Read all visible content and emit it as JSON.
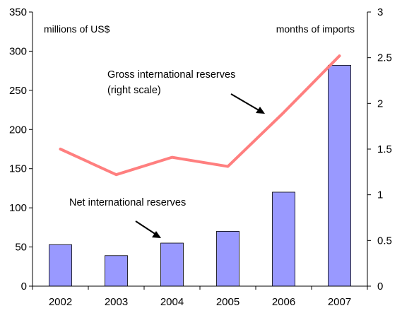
{
  "chart_data": {
    "type": "bar",
    "categories": [
      "2002",
      "2003",
      "2004",
      "2005",
      "2006",
      "2007"
    ],
    "left_axis": {
      "unit_label": "millions of US$",
      "ylim": [
        0,
        350
      ],
      "ticks": [
        "0",
        "50",
        "100",
        "150",
        "200",
        "250",
        "300",
        "350"
      ]
    },
    "right_axis": {
      "unit_label": "months of imports",
      "ylim": [
        0,
        3
      ],
      "ticks": [
        "0",
        "0.5",
        "1",
        "1.5",
        "2",
        "2.5",
        "3"
      ]
    },
    "series": [
      {
        "name": "Net international reserves",
        "type": "bar",
        "axis": "left",
        "color": "#9999ff",
        "values": [
          53,
          39,
          55,
          70,
          120,
          282
        ]
      },
      {
        "name": "Gross international reserves",
        "type": "line",
        "axis": "right",
        "color": "#ff7f7f",
        "values": [
          1.5,
          1.22,
          1.41,
          1.31,
          1.9,
          2.52
        ]
      }
    ],
    "annotations": {
      "gross_line1": "Gross international reserves",
      "gross_line2": "(right scale)",
      "net": "Net international reserves"
    },
    "grid": false,
    "legend": "none"
  }
}
